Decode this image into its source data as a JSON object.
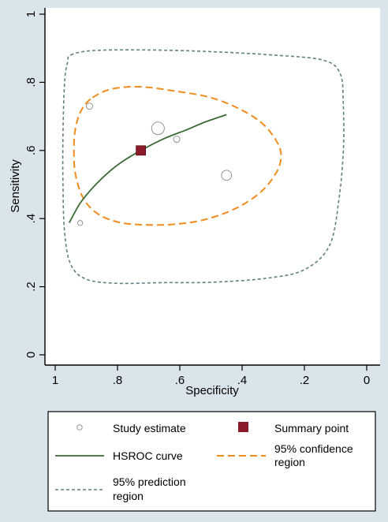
{
  "chart_data": {
    "type": "scatter",
    "title": "",
    "xlabel": "Specificity",
    "ylabel": "Sensitivity",
    "xlim": [
      1.0,
      0.0
    ],
    "ylim": [
      0.0,
      1.0
    ],
    "x_reversed": true,
    "x_ticks": [
      1,
      0.8,
      0.6,
      0.4,
      0.2,
      0
    ],
    "x_tick_labels": [
      "1",
      ".8",
      ".6",
      ".4",
      ".2",
      "0"
    ],
    "y_ticks": [
      0,
      0.2,
      0.4,
      0.6,
      0.8,
      1
    ],
    "y_tick_labels": [
      "0",
      ".2",
      ".4",
      ".6",
      ".8",
      "1"
    ],
    "grid": false,
    "legend_position": "bottom",
    "colors": {
      "background": "#d9e5ea",
      "plot_area": "#ffffff",
      "summary_point": "#8b1a2b",
      "hsroc_curve": "#3a6b35",
      "confidence_region": "#f08c1e",
      "prediction_region": "#5f8080",
      "study_marker": "#888888"
    },
    "series": [
      {
        "name": "Study estimate",
        "kind": "scatter",
        "marker": "hollow-circle",
        "points": [
          {
            "x": 0.89,
            "y": 0.73,
            "size": 1.0
          },
          {
            "x": 0.67,
            "y": 0.665,
            "size": 2.0
          },
          {
            "x": 0.61,
            "y": 0.633,
            "size": 1.0
          },
          {
            "x": 0.45,
            "y": 0.527,
            "size": 1.6
          },
          {
            "x": 0.92,
            "y": 0.387,
            "size": 0.8
          }
        ]
      },
      {
        "name": "Summary point",
        "kind": "point",
        "marker": "filled-square",
        "points": [
          {
            "x": 0.725,
            "y": 0.6
          }
        ]
      },
      {
        "name": "HSROC curve",
        "kind": "line",
        "style": "solid",
        "points": [
          {
            "x": 0.955,
            "y": 0.388
          },
          {
            "x": 0.92,
            "y": 0.445
          },
          {
            "x": 0.88,
            "y": 0.49
          },
          {
            "x": 0.83,
            "y": 0.535
          },
          {
            "x": 0.78,
            "y": 0.57
          },
          {
            "x": 0.725,
            "y": 0.6
          },
          {
            "x": 0.65,
            "y": 0.635
          },
          {
            "x": 0.58,
            "y": 0.66
          },
          {
            "x": 0.52,
            "y": 0.683
          },
          {
            "x": 0.45,
            "y": 0.705
          }
        ]
      },
      {
        "name": "95% confidence region",
        "kind": "region",
        "style": "dashed",
        "points": [
          {
            "x": 0.88,
            "y": 0.755
          },
          {
            "x": 0.82,
            "y": 0.78
          },
          {
            "x": 0.73,
            "y": 0.787
          },
          {
            "x": 0.62,
            "y": 0.775
          },
          {
            "x": 0.5,
            "y": 0.755
          },
          {
            "x": 0.4,
            "y": 0.718
          },
          {
            "x": 0.33,
            "y": 0.675
          },
          {
            "x": 0.285,
            "y": 0.62
          },
          {
            "x": 0.275,
            "y": 0.58
          },
          {
            "x": 0.29,
            "y": 0.535
          },
          {
            "x": 0.34,
            "y": 0.478
          },
          {
            "x": 0.42,
            "y": 0.43
          },
          {
            "x": 0.52,
            "y": 0.397
          },
          {
            "x": 0.62,
            "y": 0.383
          },
          {
            "x": 0.72,
            "y": 0.382
          },
          {
            "x": 0.8,
            "y": 0.39
          },
          {
            "x": 0.865,
            "y": 0.415
          },
          {
            "x": 0.91,
            "y": 0.46
          },
          {
            "x": 0.935,
            "y": 0.53
          },
          {
            "x": 0.94,
            "y": 0.6
          },
          {
            "x": 0.935,
            "y": 0.665
          },
          {
            "x": 0.915,
            "y": 0.72
          }
        ]
      },
      {
        "name": "95% prediction region",
        "kind": "region",
        "style": "dashed",
        "points": [
          {
            "x": 0.95,
            "y": 0.88
          },
          {
            "x": 0.88,
            "y": 0.893
          },
          {
            "x": 0.7,
            "y": 0.895
          },
          {
            "x": 0.5,
            "y": 0.89
          },
          {
            "x": 0.3,
            "y": 0.88
          },
          {
            "x": 0.14,
            "y": 0.865
          },
          {
            "x": 0.085,
            "y": 0.825
          },
          {
            "x": 0.075,
            "y": 0.73
          },
          {
            "x": 0.075,
            "y": 0.6
          },
          {
            "x": 0.09,
            "y": 0.45
          },
          {
            "x": 0.12,
            "y": 0.32
          },
          {
            "x": 0.2,
            "y": 0.25
          },
          {
            "x": 0.32,
            "y": 0.225
          },
          {
            "x": 0.5,
            "y": 0.213
          },
          {
            "x": 0.65,
            "y": 0.212
          },
          {
            "x": 0.8,
            "y": 0.21
          },
          {
            "x": 0.9,
            "y": 0.222
          },
          {
            "x": 0.95,
            "y": 0.265
          },
          {
            "x": 0.97,
            "y": 0.36
          },
          {
            "x": 0.975,
            "y": 0.5
          },
          {
            "x": 0.975,
            "y": 0.65
          },
          {
            "x": 0.97,
            "y": 0.8
          },
          {
            "x": 0.96,
            "y": 0.86
          }
        ]
      }
    ],
    "legend": {
      "study_estimate": "Study estimate",
      "summary_point": "Summary point",
      "hsroc_curve": "HSROC curve",
      "confidence_line1": "95% confidence",
      "confidence_line2": "region",
      "prediction_line1": "95% prediction",
      "prediction_line2": "region"
    }
  }
}
